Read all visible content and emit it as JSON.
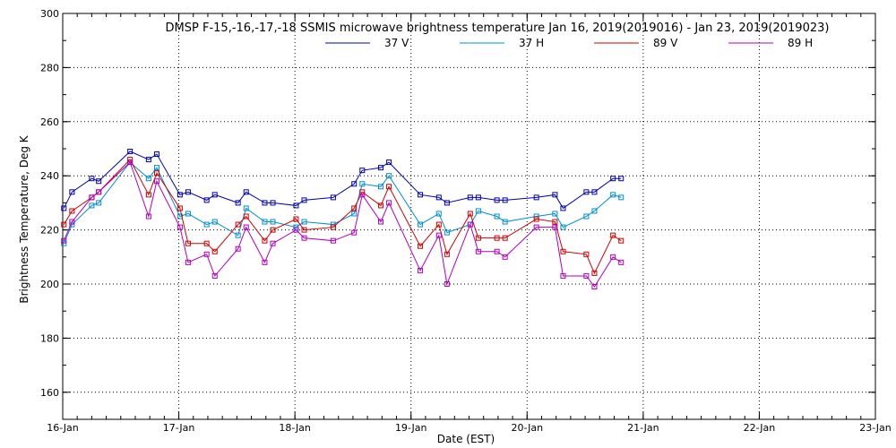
{
  "chart_data": {
    "type": "line",
    "title": "DMSP F-15,-16,-17,-18 SSMIS microwave brightness temperature Jan 16, 2019(2019016) - Jan 23, 2019(2019023)",
    "xlabel": "Date (EST)",
    "ylabel": "Brightness Temperature, Deg K",
    "xlim": [
      0,
      7
    ],
    "ylim": [
      150,
      300
    ],
    "yticks": [
      160,
      180,
      200,
      220,
      240,
      260,
      280,
      300
    ],
    "xticks": [
      {
        "value": 0,
        "label": "16-Jan"
      },
      {
        "value": 1,
        "label": "17-Jan"
      },
      {
        "value": 2,
        "label": "18-Jan"
      },
      {
        "value": 3,
        "label": "19-Jan"
      },
      {
        "value": 4,
        "label": "20-Jan"
      },
      {
        "value": 5,
        "label": "21-Jan"
      },
      {
        "value": 6,
        "label": "22-Jan"
      },
      {
        "value": 7,
        "label": "23-Jan"
      }
    ],
    "grid": true,
    "legend_position": "top",
    "x": [
      0.01,
      0.08,
      0.25,
      0.31,
      0.58,
      0.74,
      0.81,
      1.01,
      1.08,
      1.24,
      1.31,
      1.51,
      1.58,
      1.74,
      1.81,
      2.01,
      2.08,
      2.33,
      2.51,
      2.58,
      2.74,
      2.81,
      3.08,
      3.24,
      3.31,
      3.51,
      3.58,
      3.74,
      3.81,
      4.08,
      4.24,
      4.31,
      4.51,
      4.58,
      4.74,
      4.81
    ],
    "series": [
      {
        "name": "37 V",
        "color": "#0000b0",
        "values": [
          228,
          234,
          239,
          238,
          249,
          246,
          248,
          233,
          234,
          231,
          233,
          230,
          234,
          230,
          230,
          229,
          231,
          232,
          237,
          242,
          243,
          245,
          233,
          232,
          230,
          232,
          232,
          231,
          231,
          232,
          233,
          228,
          234,
          234,
          239,
          239
        ]
      },
      {
        "name": "37 H",
        "color": "#0090d0",
        "values": [
          215,
          222,
          229,
          230,
          245,
          239,
          243,
          225,
          226,
          222,
          223,
          218,
          228,
          223,
          223,
          221,
          223,
          222,
          226,
          237,
          236,
          240,
          222,
          226,
          219,
          222,
          227,
          225,
          223,
          225,
          226,
          221,
          225,
          227,
          233,
          232
        ]
      },
      {
        "name": "89 V",
        "color": "#d00000",
        "values": [
          222,
          227,
          232,
          234,
          246,
          233,
          241,
          228,
          215,
          215,
          212,
          222,
          225,
          216,
          220,
          224,
          220,
          221,
          228,
          234,
          229,
          236,
          214,
          222,
          211,
          226,
          217,
          217,
          217,
          224,
          223,
          212,
          211,
          204,
          218,
          216
        ]
      },
      {
        "name": "89 H",
        "color": "#b000c0",
        "values": [
          216,
          223,
          232,
          234,
          245,
          225,
          238,
          221,
          208,
          211,
          203,
          213,
          221,
          208,
          215,
          220,
          217,
          216,
          219,
          233,
          223,
          230,
          205,
          218,
          200,
          222,
          212,
          212,
          210,
          221,
          221,
          203,
          203,
          199,
          210,
          208
        ]
      }
    ]
  }
}
